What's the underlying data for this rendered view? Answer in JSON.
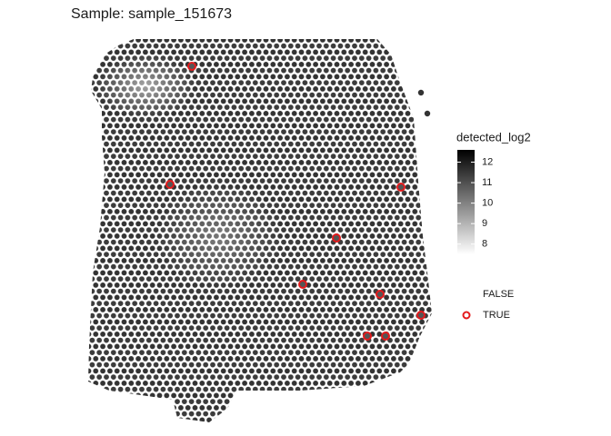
{
  "chart_data": {
    "type": "scatter",
    "title": "Sample: sample_151673",
    "xlim": [
      90,
      480
    ],
    "ylim": [
      440,
      40
    ],
    "series": [
      {
        "name": "FALSE",
        "x": [],
        "values": []
      },
      {
        "name": "TRUE",
        "color": "#e41a1c",
        "x": [
          211,
          187,
          441,
          370,
          333,
          418,
          463,
          404,
          424
        ],
        "values": [
          73,
          203,
          206,
          262,
          313,
          324,
          347,
          370,
          370
        ]
      }
    ],
    "colorbar": {
      "title": "detected_log2",
      "clim": [
        7.5,
        12.6
      ],
      "colors": [
        "#ffffff",
        "#000000"
      ],
      "ticks": [
        8,
        9,
        10,
        11,
        12
      ]
    }
  }
}
